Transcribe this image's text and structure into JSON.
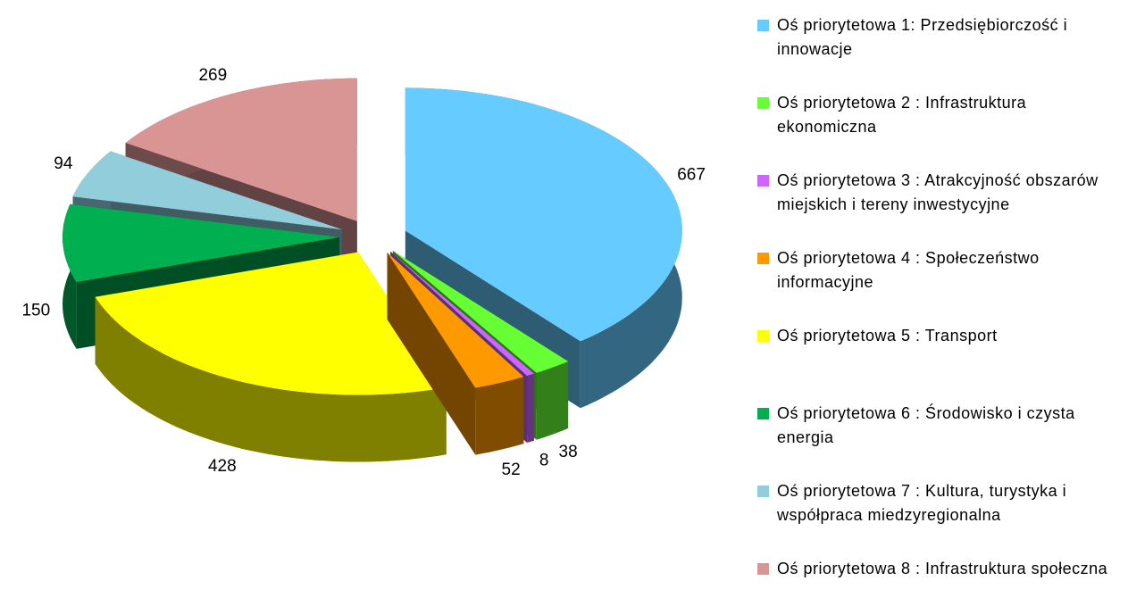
{
  "chart_data": {
    "type": "pie",
    "categories": [
      "Oś priorytetowa 1: Przedsiębiorczość i innowacje",
      "Oś priorytetowa 2 : Infrastruktura ekonomiczna",
      "Oś priorytetowa 3 : Atrakcyjność obszarów miejskich i tereny inwestycyjne",
      "Oś priorytetowa 4 : Społeczeństwo informacyjne",
      "Oś priorytetowa 5 : Transport",
      "Oś priorytetowa 6 : Środowisko i czysta energia",
      "Oś priorytetowa 7 : Kultura, turystyka i współpraca miedzyregionalna",
      "Oś priorytetowa 8 : Infrastruktura społeczna"
    ],
    "values": [
      667,
      38,
      8,
      52,
      428,
      150,
      94,
      269
    ],
    "colors": [
      "#66ccff",
      "#66ff33",
      "#cc66ff",
      "#ff9900",
      "#ffff00",
      "#00b050",
      "#92cddc",
      "#d99594"
    ],
    "legend": "right"
  }
}
